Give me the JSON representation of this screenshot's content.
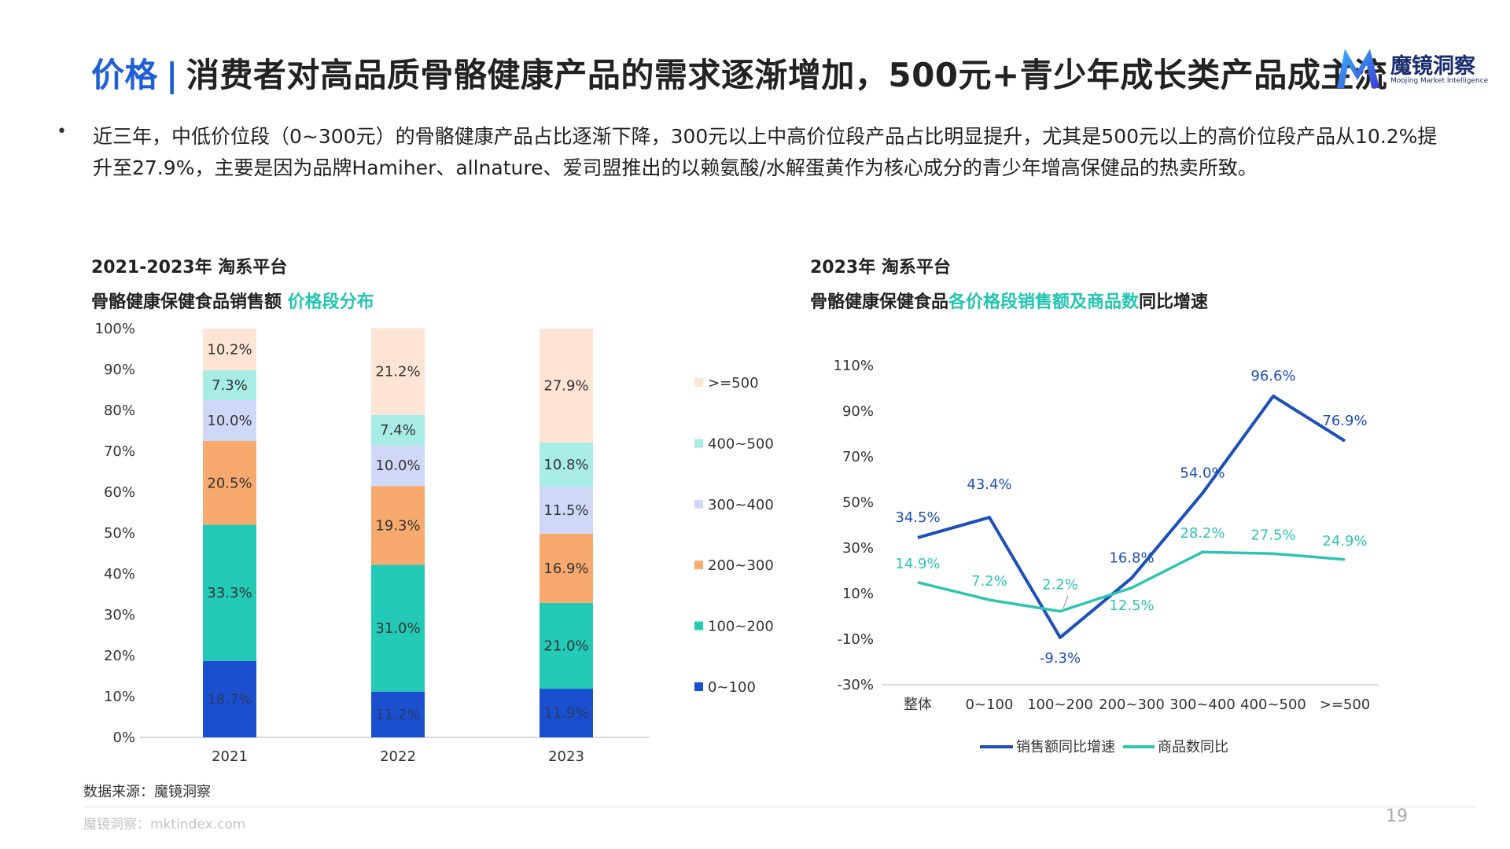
{
  "title": {
    "accent": "价格",
    "separator": "|",
    "main": "消费者对高品质骨骼健康产品的需求逐渐增加，500元+青少年成长类产品成主流"
  },
  "logo": {
    "name": "魔镜洞察",
    "subtitle": "Moojing Market Intelligence"
  },
  "bullet": {
    "text": "近三年，中低价位段（0~300元）的骨骼健康产品占比逐渐下降，300元以上中高价位段产品占比明显提升，尤其是500元以上的高价位段产品从10.2%提升至27.9%，主要是因为品牌Hamiher、allnature、爱司盟推出的以赖氨酸/水解蛋黄作为核心成分的青少年增高保健品的热卖所致。"
  },
  "left_chart": {
    "platform": "2021-2023年 淘系平台",
    "subtitle_plain": "骨骼健康保健食品销售额 ",
    "subtitle_highlight": "价格段分布"
  },
  "right_chart": {
    "platform": "2023年 淘系平台",
    "subtitle_plain1": "骨骼健康保健食品",
    "subtitle_highlight": "各价格段销售额及商品数",
    "subtitle_plain2": "同比增速"
  },
  "source": "数据来源：魔镜洞察",
  "footer": "魔镜洞察：mktindex.com",
  "page_number": "19",
  "colors": {
    "accent_blue": "#1f5fd6",
    "accent_teal": "#22c5b1"
  },
  "chart_data": [
    {
      "type": "bar",
      "stacked": true,
      "categories": [
        "2021",
        "2022",
        "2023"
      ],
      "series": [
        {
          "name": "0~100",
          "values": [
            18.7,
            11.2,
            11.9
          ],
          "color": "#1a4fcf"
        },
        {
          "name": "100~200",
          "values": [
            33.3,
            31.0,
            21.0
          ],
          "color": "#23cbb6"
        },
        {
          "name": "200~300",
          "values": [
            20.5,
            19.3,
            16.9
          ],
          "color": "#f8a96e"
        },
        {
          "name": "300~400",
          "values": [
            10.0,
            10.0,
            11.5
          ],
          "color": "#cfd9f7"
        },
        {
          "name": "400~500",
          "values": [
            7.3,
            7.4,
            10.8
          ],
          "color": "#a7ede6"
        },
        {
          "name": ">=500",
          "values": [
            10.2,
            21.2,
            27.9
          ],
          "color": "#fde4d5"
        }
      ],
      "value_labels": [
        [
          "18.7%",
          "11.2%",
          "11.9%"
        ],
        [
          "33.3%",
          "31.0%",
          "21.0%"
        ],
        [
          "20.5%",
          "19.3%",
          "16.9%"
        ],
        [
          "10.0%",
          "10.0%",
          "11.5%"
        ],
        [
          "7.3%",
          "7.4%",
          "10.8%"
        ],
        [
          "10.2%",
          "21.2%",
          "27.9%"
        ]
      ],
      "yticks": [
        "0%",
        "10%",
        "20%",
        "30%",
        "40%",
        "50%",
        "60%",
        "70%",
        "80%",
        "90%",
        "100%"
      ],
      "ylim": [
        0,
        100
      ],
      "legend_position": "right"
    },
    {
      "type": "line",
      "categories": [
        "整体",
        "0~100",
        "100~200",
        "200~300",
        "300~400",
        "400~500",
        ">=500"
      ],
      "series": [
        {
          "name": "销售额同比增速",
          "values": [
            34.5,
            43.4,
            -9.3,
            16.8,
            54.0,
            96.6,
            76.9
          ],
          "labels": [
            "34.5%",
            "43.4%",
            "-9.3%",
            "16.8%",
            "54.0%",
            "96.6%",
            "76.9%"
          ],
          "color": "#1d4fb8"
        },
        {
          "name": "商品数同比",
          "values": [
            14.9,
            7.2,
            2.2,
            12.5,
            28.2,
            27.5,
            24.9
          ],
          "labels": [
            "14.9%",
            "7.2%",
            "2.2%",
            "12.5%",
            "28.2%",
            "27.5%",
            "24.9%"
          ],
          "color": "#2ec4b2"
        }
      ],
      "yticks": [
        "-30%",
        "-10%",
        "10%",
        "30%",
        "50%",
        "70%",
        "90%",
        "110%"
      ],
      "ylim": [
        -30,
        110
      ],
      "legend_position": "bottom"
    }
  ]
}
